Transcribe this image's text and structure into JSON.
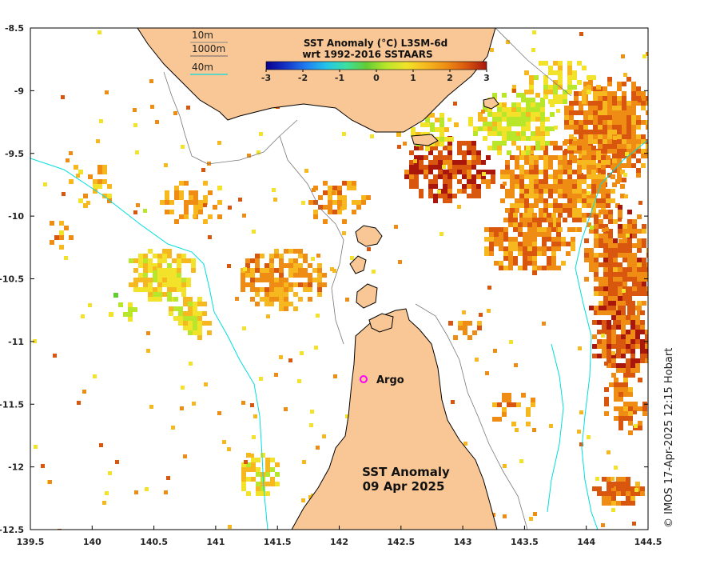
{
  "map": {
    "colorbar_title_line1": "SST Anomaly (°C) L3SM-6d",
    "colorbar_title_line2": "wrt 1992-2016 SSTAARS",
    "colorbar_ticks": [
      "-3",
      "-2",
      "-1",
      "0",
      "1",
      "2",
      "3"
    ],
    "colorbar_colors": [
      "#08008f",
      "#1434c8",
      "#1e7ef0",
      "#22c4ea",
      "#3ce0a0",
      "#63cc33",
      "#b8e62a",
      "#f2e22a",
      "#f6b81e",
      "#ee8c14",
      "#d8560e",
      "#a8160c"
    ],
    "contour_legend": [
      {
        "label": "10m",
        "color": "#555555"
      },
      {
        "label": "1000m",
        "color": "#555555"
      },
      {
        "label": "40m",
        "color": "#00dddd"
      }
    ],
    "x_axis": {
      "ticks": [
        "139.5",
        "140",
        "140.5",
        "141",
        "141.5",
        "142",
        "142.5",
        "143",
        "143.5",
        "144",
        "144.5"
      ]
    },
    "y_axis": {
      "ticks": [
        "-8.5",
        "-9",
        "-9.5",
        "-10",
        "-10.5",
        "-11",
        "-11.5",
        "-12",
        "-12.5"
      ]
    },
    "lon_range": [
      139.5,
      144.5
    ],
    "lat_range": [
      -12.5,
      -8.5
    ],
    "argo_label": "Argo",
    "argo_position": {
      "lon": 142.2,
      "lat": -11.3
    },
    "argo_color": "#ff00ff",
    "map_title_line1": "SST Anomaly",
    "map_title_line2": "09 Apr 2025",
    "credit": "© IMOS 17-Apr-2025 12:15 Hobart",
    "land_color": "#f9c795",
    "contour_10m_color": "#777777",
    "contour_40m_color": "#00dddd"
  }
}
